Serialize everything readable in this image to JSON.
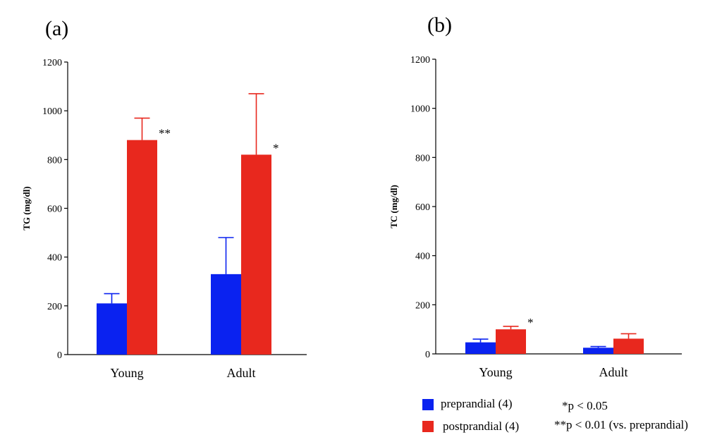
{
  "colors": {
    "preprandial": "#0a22f0",
    "postprandial": "#e8281e",
    "axis": "#000000"
  },
  "chart_data": [
    {
      "type": "bar",
      "panel_label": "(a)",
      "ylabel": "TG (mg/dl)",
      "xlabel": "",
      "categories": [
        "Young",
        "Adult"
      ],
      "ylim": [
        0,
        1200
      ],
      "yticks": [
        "0",
        "200",
        "400",
        "600",
        "800",
        "1000",
        "1200"
      ],
      "tick_values": [
        0,
        200,
        400,
        600,
        800,
        1000,
        1200
      ],
      "series": [
        {
          "name": "preprandial (4)",
          "values": [
            210,
            330
          ],
          "errors": [
            40,
            150
          ]
        },
        {
          "name": "postprandial (4)",
          "values": [
            880,
            820
          ],
          "errors": [
            90,
            250
          ]
        }
      ],
      "annotations": [
        {
          "category": 0,
          "series": 1,
          "text": "**"
        },
        {
          "category": 1,
          "series": 1,
          "text": "*"
        }
      ]
    },
    {
      "type": "bar",
      "panel_label": "(b)",
      "ylabel": "TC (mg/dl)",
      "xlabel": "",
      "categories": [
        "Young",
        "Adult"
      ],
      "ylim": [
        0,
        1200
      ],
      "yticks": [
        "0",
        "200",
        "400",
        "600",
        "800",
        "1000",
        "1200"
      ],
      "tick_values": [
        0,
        200,
        400,
        600,
        800,
        1000,
        1200
      ],
      "series": [
        {
          "name": "preprandial (4)",
          "values": [
            47,
            25
          ],
          "errors": [
            13,
            5
          ]
        },
        {
          "name": "postprandial (4)",
          "values": [
            100,
            62
          ],
          "errors": [
            12,
            20
          ]
        }
      ],
      "annotations": [
        {
          "category": 0,
          "series": 1,
          "text": "*"
        }
      ]
    }
  ],
  "legend": {
    "items": [
      {
        "label": "preprandial (4)",
        "series": "preprandial"
      },
      {
        "label": "postprandial (4)",
        "series": "postprandial"
      }
    ],
    "notes": [
      "*p < 0.05",
      "**p < 0.01 (vs. preprandial)"
    ]
  }
}
